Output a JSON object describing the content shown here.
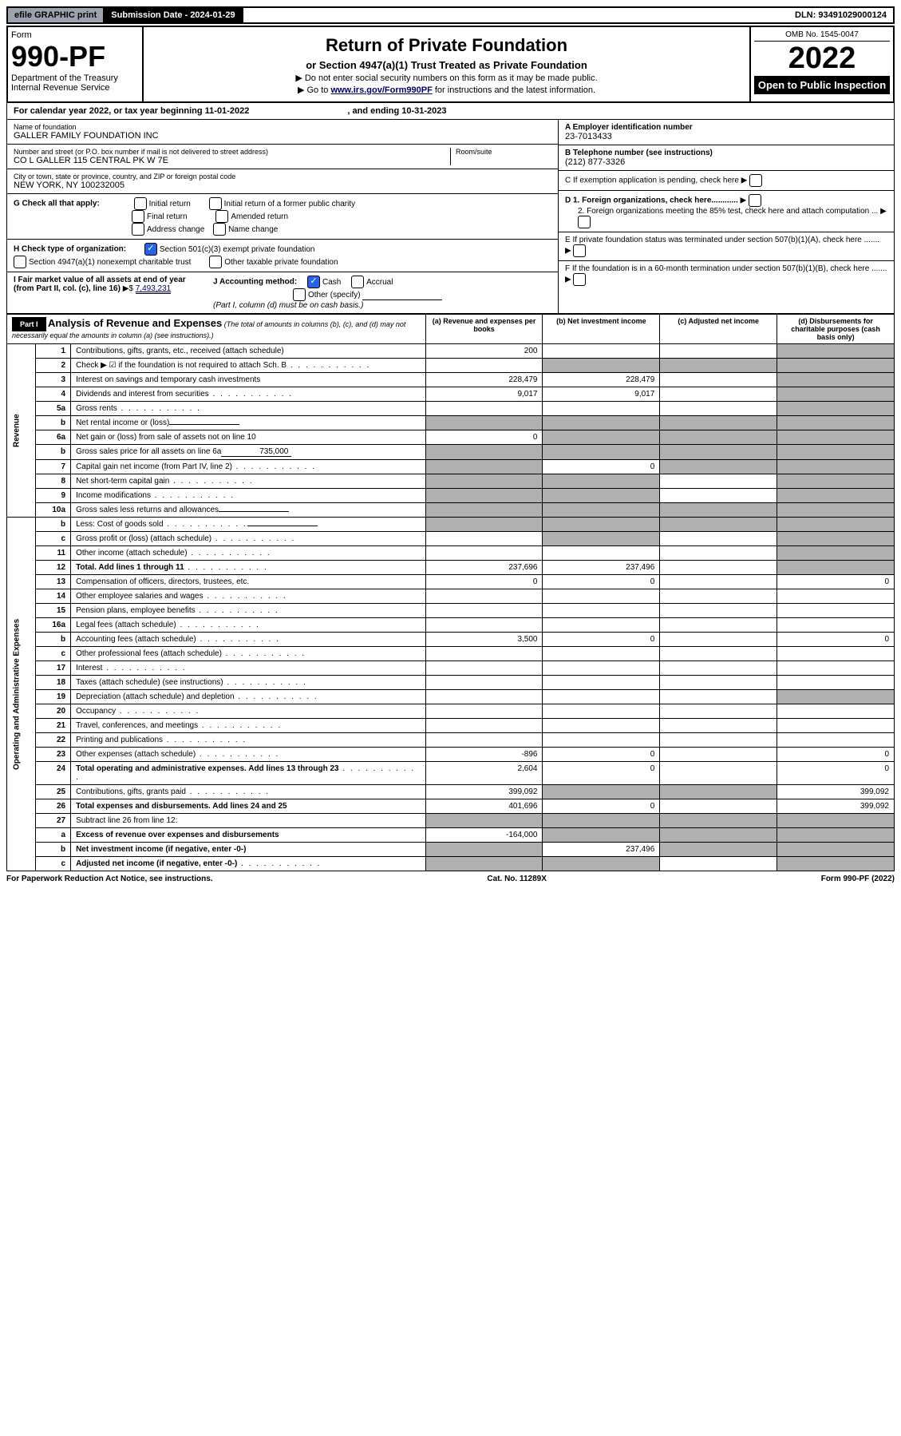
{
  "topbar": {
    "efile": "efile GRAPHIC print",
    "submission": "Submission Date - 2024-01-29",
    "dln": "DLN: 93491029000124"
  },
  "header": {
    "form_label": "Form",
    "form_number": "990-PF",
    "dept": "Department of the Treasury",
    "irs": "Internal Revenue Service",
    "title": "Return of Private Foundation",
    "subtitle": "or Section 4947(a)(1) Trust Treated as Private Foundation",
    "instr1": "Do not enter social security numbers on this form as it may be made public.",
    "instr2_prefix": "Go to ",
    "instr2_link": "www.irs.gov/Form990PF",
    "instr2_suffix": " for instructions and the latest information.",
    "omb": "OMB No. 1545-0047",
    "year": "2022",
    "open": "Open to Public Inspection"
  },
  "calyear": {
    "text": "For calendar year 2022, or tax year beginning 11-01-2022",
    "ending": ", and ending 10-31-2023"
  },
  "info": {
    "name_label": "Name of foundation",
    "name": "GALLER FAMILY FOUNDATION INC",
    "addr_label": "Number and street (or P.O. box number if mail is not delivered to street address)",
    "addr": "CO L GALLER 115 CENTRAL PK W 7E",
    "room_label": "Room/suite",
    "city_label": "City or town, state or province, country, and ZIP or foreign postal code",
    "city": "NEW YORK, NY  100232005",
    "a_label": "A Employer identification number",
    "a_val": "23-7013433",
    "b_label": "B Telephone number (see instructions)",
    "b_val": "(212) 877-3326",
    "c_label": "C If exemption application is pending, check here",
    "d1": "D 1. Foreign organizations, check here............",
    "d2": "2. Foreign organizations meeting the 85% test, check here and attach computation ...",
    "e": "E  If private foundation status was terminated under section 507(b)(1)(A), check here .......",
    "f": "F  If the foundation is in a 60-month termination under section 507(b)(1)(B), check here .......",
    "g_label": "G Check all that apply:",
    "g_opts": [
      "Initial return",
      "Initial return of a former public charity",
      "Final return",
      "Amended return",
      "Address change",
      "Name change"
    ],
    "h_label": "H Check type of organization:",
    "h_opt1": "Section 501(c)(3) exempt private foundation",
    "h_opt2": "Section 4947(a)(1) nonexempt charitable trust",
    "h_opt3": "Other taxable private foundation",
    "i_label": "I Fair market value of all assets at end of year (from Part II, col. (c), line 16)",
    "i_val": "7,493,231",
    "j_label": "J Accounting method:",
    "j_opts": [
      "Cash",
      "Accrual",
      "Other (specify)"
    ],
    "j_note": "(Part I, column (d) must be on cash basis.)"
  },
  "part1": {
    "label": "Part I",
    "title": "Analysis of Revenue and Expenses",
    "title_note": "(The total of amounts in columns (b), (c), and (d) may not necessarily equal the amounts in column (a) (see instructions).)",
    "col_a": "(a)   Revenue and expenses per books",
    "col_b": "(b)   Net investment income",
    "col_c": "(c)   Adjusted net income",
    "col_d": "(d)   Disbursements for charitable purposes (cash basis only)",
    "revenue_label": "Revenue",
    "expenses_label": "Operating and Administrative Expenses"
  },
  "rows": [
    {
      "n": "1",
      "desc": "Contributions, gifts, grants, etc., received (attach schedule)",
      "a": "200",
      "b": "",
      "c": "",
      "d": "",
      "d_shade": true
    },
    {
      "n": "2",
      "desc": "Check ▶ ☑ if the foundation is not required to attach Sch. B",
      "dots": true,
      "a": "",
      "b": "",
      "c": "",
      "d": "",
      "d_shade": true,
      "all_shade_bcd": true
    },
    {
      "n": "3",
      "desc": "Interest on savings and temporary cash investments",
      "a": "228,479",
      "b": "228,479",
      "c": "",
      "d": "",
      "d_shade": true
    },
    {
      "n": "4",
      "desc": "Dividends and interest from securities",
      "dots": true,
      "a": "9,017",
      "b": "9,017",
      "c": "",
      "d": "",
      "d_shade": true
    },
    {
      "n": "5a",
      "desc": "Gross rents",
      "dots": true,
      "a": "",
      "b": "",
      "c": "",
      "d": "",
      "d_shade": true
    },
    {
      "n": "b",
      "desc": "Net rental income or (loss)",
      "sub": "",
      "a": "",
      "b": "",
      "c": "",
      "d": "",
      "shade_abcd": true
    },
    {
      "n": "6a",
      "desc": "Net gain or (loss) from sale of assets not on line 10",
      "a": "0",
      "b": "",
      "c": "",
      "d": "",
      "b_shade": true,
      "c_shade": true,
      "d_shade": true
    },
    {
      "n": "b",
      "desc": "Gross sales price for all assets on line 6a",
      "sub": "735,000",
      "a": "",
      "b": "",
      "c": "",
      "d": "",
      "shade_abcd": true
    },
    {
      "n": "7",
      "desc": "Capital gain net income (from Part IV, line 2)",
      "dots": true,
      "a": "",
      "b": "0",
      "c": "",
      "d": "",
      "a_shade": true,
      "c_shade": true,
      "d_shade": true
    },
    {
      "n": "8",
      "desc": "Net short-term capital gain",
      "dots": true,
      "a": "",
      "b": "",
      "c": "",
      "d": "",
      "a_shade": true,
      "b_shade": true,
      "d_shade": true
    },
    {
      "n": "9",
      "desc": "Income modifications",
      "dots": true,
      "a": "",
      "b": "",
      "c": "",
      "d": "",
      "a_shade": true,
      "b_shade": true,
      "d_shade": true
    },
    {
      "n": "10a",
      "desc": "Gross sales less returns and allowances",
      "sub": "",
      "a": "",
      "b": "",
      "c": "",
      "d": "",
      "shade_abcd": true
    },
    {
      "n": "b",
      "desc": "Less: Cost of goods sold",
      "dots": true,
      "sub": "",
      "a": "",
      "b": "",
      "c": "",
      "d": "",
      "shade_abcd": true
    },
    {
      "n": "c",
      "desc": "Gross profit or (loss) (attach schedule)",
      "dots": true,
      "a": "",
      "b": "",
      "c": "",
      "d": "",
      "b_shade": true,
      "d_shade": true
    },
    {
      "n": "11",
      "desc": "Other income (attach schedule)",
      "dots": true,
      "a": "",
      "b": "",
      "c": "",
      "d": "",
      "d_shade": true
    },
    {
      "n": "12",
      "desc": "Total. Add lines 1 through 11",
      "dots": true,
      "bold": true,
      "a": "237,696",
      "b": "237,496",
      "c": "",
      "d": "",
      "d_shade": true
    },
    {
      "n": "13",
      "desc": "Compensation of officers, directors, trustees, etc.",
      "a": "0",
      "b": "0",
      "c": "",
      "d": "0"
    },
    {
      "n": "14",
      "desc": "Other employee salaries and wages",
      "dots": true,
      "a": "",
      "b": "",
      "c": "",
      "d": ""
    },
    {
      "n": "15",
      "desc": "Pension plans, employee benefits",
      "dots": true,
      "a": "",
      "b": "",
      "c": "",
      "d": ""
    },
    {
      "n": "16a",
      "desc": "Legal fees (attach schedule)",
      "dots": true,
      "a": "",
      "b": "",
      "c": "",
      "d": ""
    },
    {
      "n": "b",
      "desc": "Accounting fees (attach schedule)",
      "dots": true,
      "a": "3,500",
      "b": "0",
      "c": "",
      "d": "0"
    },
    {
      "n": "c",
      "desc": "Other professional fees (attach schedule)",
      "dots": true,
      "a": "",
      "b": "",
      "c": "",
      "d": ""
    },
    {
      "n": "17",
      "desc": "Interest",
      "dots": true,
      "a": "",
      "b": "",
      "c": "",
      "d": ""
    },
    {
      "n": "18",
      "desc": "Taxes (attach schedule) (see instructions)",
      "dots": true,
      "a": "",
      "b": "",
      "c": "",
      "d": ""
    },
    {
      "n": "19",
      "desc": "Depreciation (attach schedule) and depletion",
      "dots": true,
      "a": "",
      "b": "",
      "c": "",
      "d": "",
      "d_shade": true
    },
    {
      "n": "20",
      "desc": "Occupancy",
      "dots": true,
      "a": "",
      "b": "",
      "c": "",
      "d": ""
    },
    {
      "n": "21",
      "desc": "Travel, conferences, and meetings",
      "dots": true,
      "a": "",
      "b": "",
      "c": "",
      "d": ""
    },
    {
      "n": "22",
      "desc": "Printing and publications",
      "dots": true,
      "a": "",
      "b": "",
      "c": "",
      "d": ""
    },
    {
      "n": "23",
      "desc": "Other expenses (attach schedule)",
      "dots": true,
      "a": "-896",
      "b": "0",
      "c": "",
      "d": "0"
    },
    {
      "n": "24",
      "desc": "Total operating and administrative expenses. Add lines 13 through 23",
      "dots": true,
      "bold": true,
      "a": "2,604",
      "b": "0",
      "c": "",
      "d": "0"
    },
    {
      "n": "25",
      "desc": "Contributions, gifts, grants paid",
      "dots": true,
      "a": "399,092",
      "b": "",
      "c": "",
      "d": "399,092",
      "b_shade": true,
      "c_shade": true
    },
    {
      "n": "26",
      "desc": "Total expenses and disbursements. Add lines 24 and 25",
      "bold": true,
      "a": "401,696",
      "b": "0",
      "c": "",
      "d": "399,092"
    },
    {
      "n": "27",
      "desc": "Subtract line 26 from line 12:",
      "a": "",
      "b": "",
      "c": "",
      "d": "",
      "shade_abcd": true
    },
    {
      "n": "a",
      "desc": "Excess of revenue over expenses and disbursements",
      "bold": true,
      "a": "-164,000",
      "b": "",
      "c": "",
      "d": "",
      "b_shade": true,
      "c_shade": true,
      "d_shade": true
    },
    {
      "n": "b",
      "desc": "Net investment income (if negative, enter -0-)",
      "bold": true,
      "a": "",
      "b": "237,496",
      "c": "",
      "d": "",
      "a_shade": true,
      "c_shade": true,
      "d_shade": true
    },
    {
      "n": "c",
      "desc": "Adjusted net income (if negative, enter -0-)",
      "dots": true,
      "bold": true,
      "a": "",
      "b": "",
      "c": "",
      "d": "",
      "a_shade": true,
      "b_shade": true,
      "d_shade": true
    }
  ],
  "footer": {
    "left": "For Paperwork Reduction Act Notice, see instructions.",
    "mid": "Cat. No. 11289X",
    "right": "Form 990-PF (2022)"
  }
}
